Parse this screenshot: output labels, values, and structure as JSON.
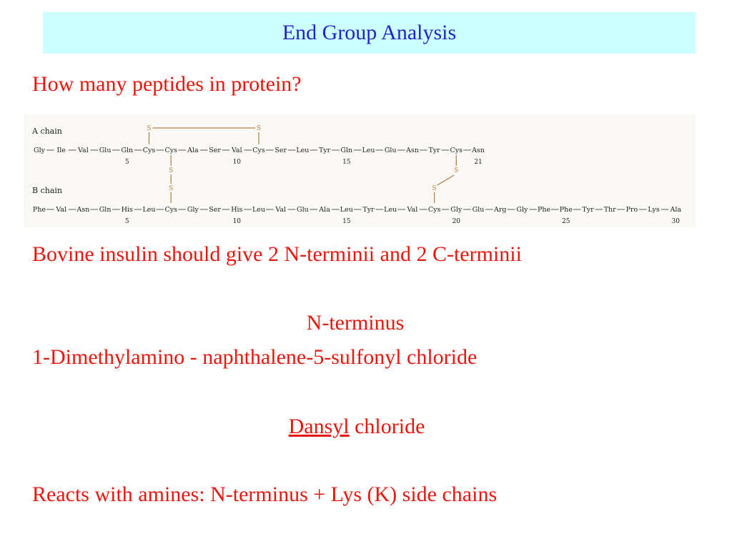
{
  "title": "End Group Analysis",
  "question": "How many peptides in protein?",
  "figure": {
    "sulfur_label": "S",
    "chains": [
      {
        "label": "A chain",
        "residues": [
          "Gly",
          "Ile",
          "Val",
          "Glu",
          "Gln",
          "Cys",
          "Cys",
          "Ala",
          "Ser",
          "Val",
          "Cys",
          "Ser",
          "Leu",
          "Tyr",
          "Gln",
          "Leu",
          "Glu",
          "Asn",
          "Tyr",
          "Cys",
          "Asn"
        ],
        "numbers": [
          5,
          10,
          15,
          21
        ]
      },
      {
        "label": "B chain",
        "residues": [
          "Phe",
          "Val",
          "Asn",
          "Gln",
          "His",
          "Leu",
          "Cys",
          "Gly",
          "Ser",
          "His",
          "Leu",
          "Val",
          "Glu",
          "Ala",
          "Leu",
          "Tyr",
          "Leu",
          "Val",
          "Cys",
          "Gly",
          "Glu",
          "Arg",
          "Gly",
          "Phe",
          "Phe",
          "Tyr",
          "Thr",
          "Pro",
          "Lys",
          "Ala"
        ],
        "numbers": [
          5,
          10,
          15,
          20,
          25,
          30
        ]
      }
    ]
  },
  "statement": "Bovine insulin should give 2 N-terminii and 2 C-terminii",
  "n_terminus_heading": "N-terminus",
  "reagent": "1-Dimethylamino - naphthalene-5-sulfonyl chloride",
  "dansyl": {
    "name": "Dansyl",
    "suffix": "chloride"
  },
  "reaction": "Reacts with amines: N-terminus + Lys (K) side chains"
}
